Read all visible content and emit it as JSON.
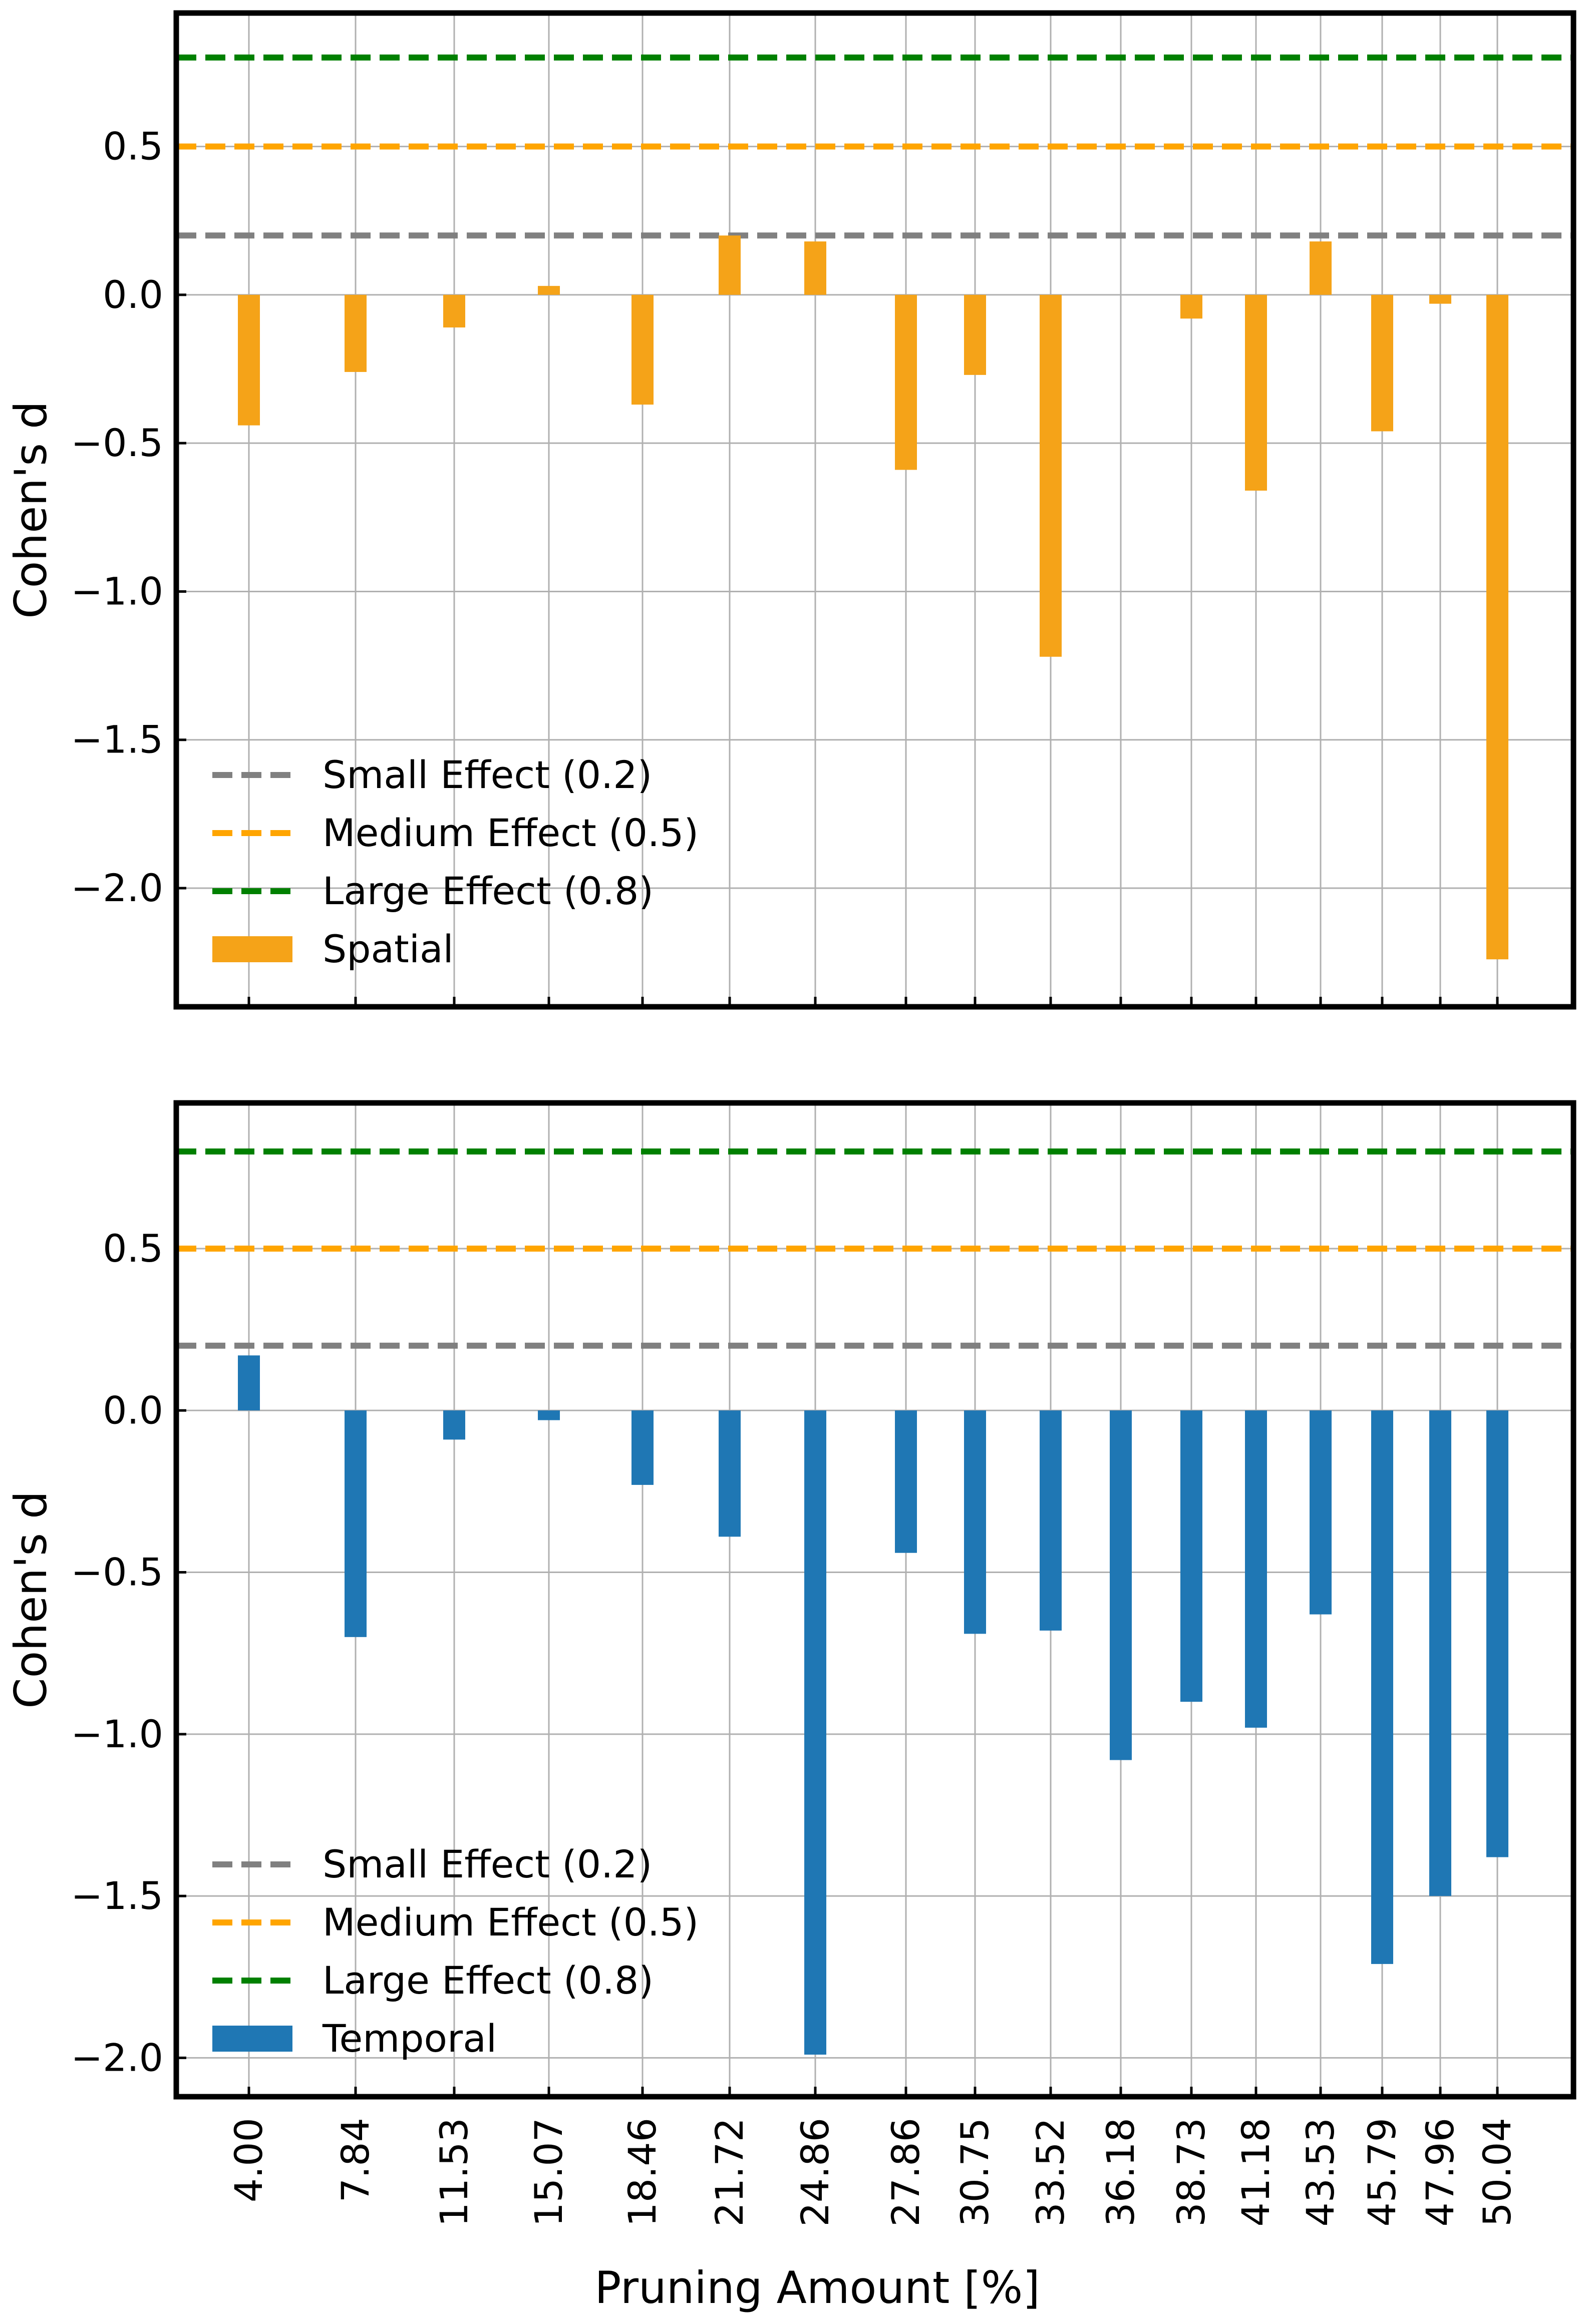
{
  "chart_data": [
    {
      "type": "bar",
      "panel": "top",
      "categories": [
        "4.00",
        "7.84",
        "11.53",
        "15.07",
        "18.46",
        "21.72",
        "24.86",
        "27.86",
        "30.75",
        "33.52",
        "36.18",
        "38.73",
        "41.18",
        "43.53",
        "45.79",
        "47.96",
        "50.04"
      ],
      "series": [
        {
          "name": "Spatial",
          "color": "#f5a318",
          "values": [
            -0.44,
            -0.26,
            -0.11,
            0.03,
            -0.37,
            0.2,
            0.18,
            -0.59,
            -0.27,
            -1.22,
            0.0,
            -0.08,
            -0.66,
            0.18,
            -0.46,
            -0.03,
            -2.24
          ]
        }
      ],
      "ylabel": "Cohen's d",
      "xlabel": "",
      "ylim": [
        -2.4,
        0.95
      ],
      "yticks": [
        0.5,
        0.0,
        -0.5,
        -1.0,
        -1.5,
        -2.0
      ],
      "ytick_labels": [
        "0.5",
        "0.0",
        "−0.5",
        "−1.0",
        "−1.5",
        "−2.0"
      ],
      "reference_lines": [
        {
          "label": "Small Effect (0.2)",
          "value": 0.2,
          "color": "#808080"
        },
        {
          "label": "Medium Effect (0.5)",
          "value": 0.5,
          "color": "#ffa500"
        },
        {
          "label": "Large Effect (0.8)",
          "value": 0.8,
          "color": "#008000"
        }
      ],
      "grid": true,
      "legend": "lower-left"
    },
    {
      "type": "bar",
      "panel": "bottom",
      "categories": [
        "4.00",
        "7.84",
        "11.53",
        "15.07",
        "18.46",
        "21.72",
        "24.86",
        "27.86",
        "30.75",
        "33.52",
        "36.18",
        "38.73",
        "41.18",
        "43.53",
        "45.79",
        "47.96",
        "50.04"
      ],
      "series": [
        {
          "name": "Temporal",
          "color": "#1f77b4",
          "values": [
            0.17,
            -0.7,
            -0.09,
            -0.03,
            -0.23,
            -0.39,
            -1.99,
            -0.44,
            -0.69,
            -0.68,
            -1.08,
            -0.9,
            -0.98,
            -0.63,
            -1.71,
            -1.5,
            -1.38
          ]
        }
      ],
      "ylabel": "Cohen's d",
      "xlabel": "Pruning Amount [%]",
      "ylim": [
        -2.12,
        0.95
      ],
      "yticks": [
        0.5,
        0.0,
        -0.5,
        -1.0,
        -1.5,
        -2.0
      ],
      "ytick_labels": [
        "0.5",
        "0.0",
        "−0.5",
        "−1.0",
        "−1.5",
        "−2.0"
      ],
      "reference_lines": [
        {
          "label": "Small Effect (0.2)",
          "value": 0.2,
          "color": "#808080"
        },
        {
          "label": "Medium Effect (0.5)",
          "value": 0.5,
          "color": "#ffa500"
        },
        {
          "label": "Large Effect (0.8)",
          "value": 0.8,
          "color": "#008000"
        }
      ],
      "grid": true,
      "legend": "lower-left"
    }
  ]
}
